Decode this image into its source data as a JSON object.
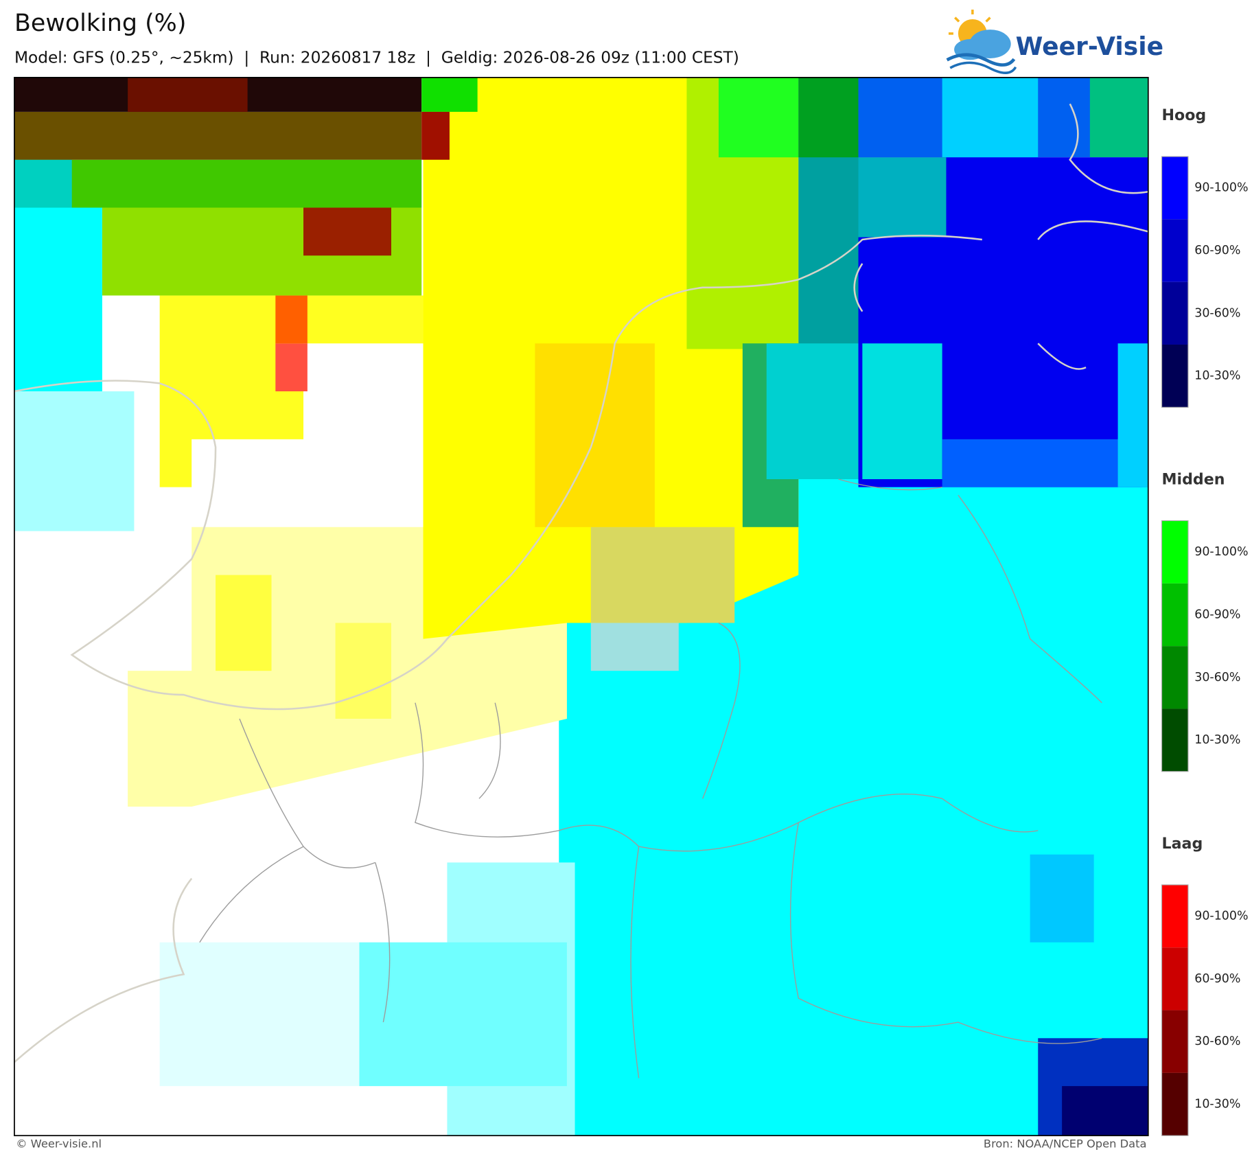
{
  "header": {
    "title": "Bewolking (%)",
    "subtitle": "Model: GFS (0.25°, ~25km)  |  Run: 20260817 18z  |  Geldig: 2026-08-26 09z (11:00 CEST)"
  },
  "logo": "Weer-Visie",
  "legend": [
    {
      "title": "Hoog",
      "labels": [
        "90-100%",
        "60-90%",
        "30-60%",
        "10-30%"
      ]
    },
    {
      "title": "Midden",
      "labels": [
        "90-100%",
        "60-90%",
        "30-60%",
        "10-30%"
      ]
    },
    {
      "title": "Laag",
      "labels": [
        "90-100%",
        "60-90%",
        "30-60%",
        "10-30%"
      ]
    }
  ],
  "footer": {
    "left": "© Weer-visie.nl",
    "right": "Bron: NOAA/NCEP Open Data"
  }
}
